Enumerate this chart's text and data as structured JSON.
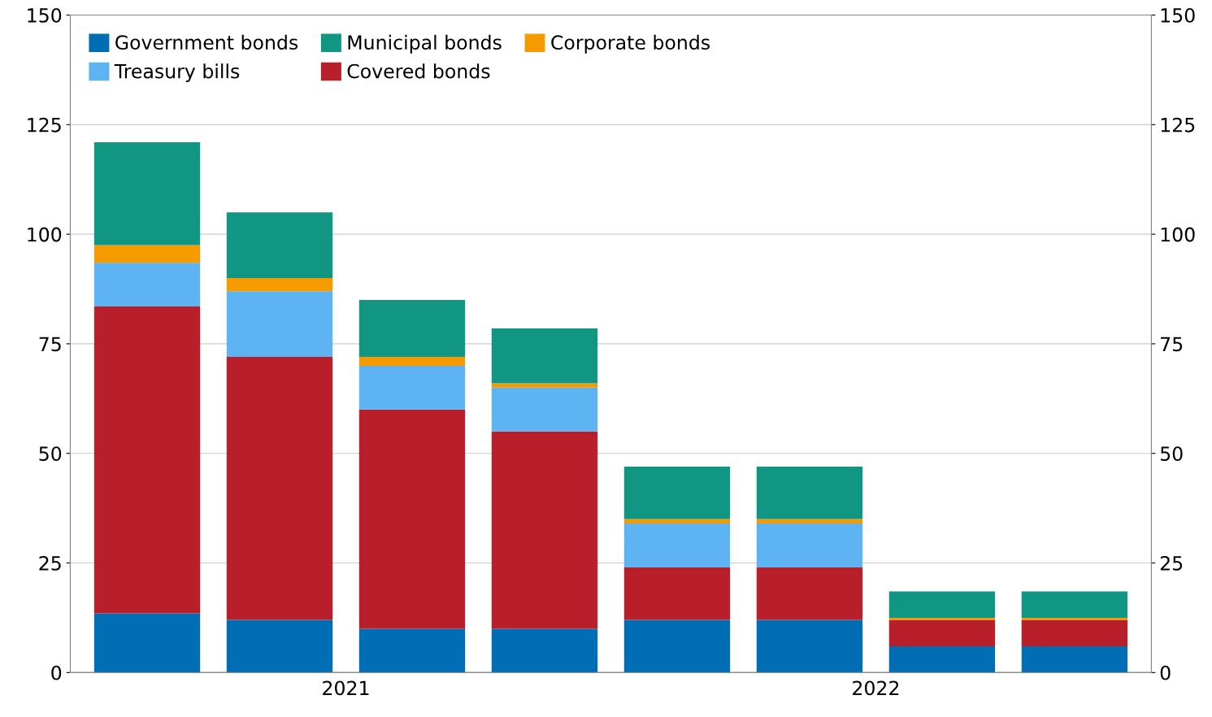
{
  "chart_data": {
    "type": "bar",
    "stacked": true,
    "categories": [
      null,
      null,
      null,
      null,
      null,
      null,
      null,
      null
    ],
    "series": [
      {
        "name": "Government bonds",
        "color": "#006db4",
        "values": [
          13.5,
          12,
          10,
          10,
          12,
          12,
          6,
          6
        ]
      },
      {
        "name": "Covered bonds",
        "color": "#b81f2b",
        "values": [
          70,
          60,
          50,
          45,
          12,
          12,
          6,
          6
        ]
      },
      {
        "name": "Treasury bills",
        "color": "#5eb3f2",
        "values": [
          10,
          15,
          10,
          10,
          10,
          10,
          0,
          0
        ]
      },
      {
        "name": "Corporate bonds",
        "color": "#f59b00",
        "values": [
          4,
          3,
          2,
          1,
          1,
          1,
          0.5,
          0.5
        ]
      },
      {
        "name": "Municipal bonds",
        "color": "#109683",
        "values": [
          23.5,
          15,
          13,
          12.5,
          12,
          12,
          6,
          6
        ]
      }
    ],
    "ylim": [
      0,
      150
    ],
    "yticks": [
      0,
      25,
      50,
      75,
      100,
      125,
      150
    ],
    "y2lim": [
      0,
      150
    ],
    "y2ticks": [
      0,
      25,
      50,
      75,
      100,
      125,
      150
    ],
    "annotations": [
      "2021",
      "2022"
    ],
    "grid": "y",
    "legend": "top left"
  }
}
